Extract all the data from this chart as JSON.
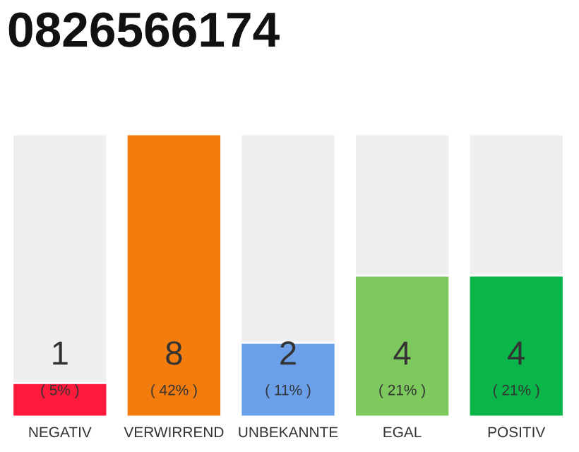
{
  "chart_data": {
    "type": "bar",
    "title": "0826566174",
    "categories": [
      "NEGATIV",
      "VERWIRREND",
      "UNBEKANNTE",
      "EGAL",
      "POSITIV"
    ],
    "values": [
      5,
      42,
      11,
      21,
      21
    ],
    "colors": [
      "#ff1a3c",
      "#f27c0e",
      "#6ba0e8",
      "#7dc95e",
      "#0ab54a"
    ],
    "value_labels": [
      "( 5% )",
      "( 42% )",
      "( 11% )",
      "( 21% )",
      "( 21% )"
    ],
    "annotations": [
      "1",
      "8",
      "2",
      "4",
      "4"
    ],
    "ylim": [
      0,
      42
    ]
  }
}
